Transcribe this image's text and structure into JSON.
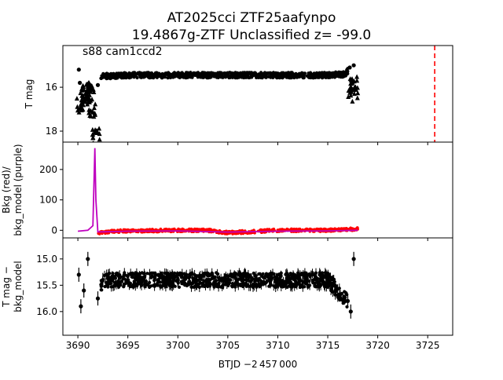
{
  "title_line1": "AT2025cci  ZTF25aafynpo",
  "title_line2": "19.4867g-ZTF Unclassified z= -99.0",
  "annotation": "s88 cam1ccd2",
  "xlabel": "BTJD −2 457 000",
  "colors": {
    "points": "#000000",
    "bkg": "#ff0000",
    "model": "#bf00bf",
    "vline": "#ff0000"
  },
  "chart_data": [
    {
      "type": "scatter",
      "panel": "top",
      "ylabel": "T mag",
      "xlim": [
        3688.5,
        3727.5
      ],
      "ylim": [
        18.5,
        14.1
      ],
      "yticks": [
        16,
        18
      ],
      "vline_x": 3725.7,
      "series": [
        {
          "marker": "circle",
          "x": [
            3690.1,
            3690.2,
            3692.0,
            3692.5,
            3695,
            3700,
            3705,
            3710,
            3715,
            3716.8,
            3717.2,
            3717.6
          ],
          "y": [
            15.2,
            15.8,
            15.9,
            15.5,
            15.45,
            15.45,
            15.45,
            15.45,
            15.45,
            15.4,
            15.1,
            15.0
          ]
        },
        {
          "marker": "triangle",
          "x": [
            3690.3,
            3690.6,
            3690.9,
            3691.2,
            3691.5,
            3691.8,
            3717.3,
            3717.6,
            3717.8
          ],
          "y": [
            16.7,
            16.5,
            16.3,
            16.1,
            17.0,
            18.3,
            16.0,
            15.8,
            16.2
          ]
        }
      ]
    },
    {
      "type": "line",
      "panel": "middle",
      "ylabel": "Bkg (red)/\nbkg_model (purple)",
      "xlim": [
        3688.5,
        3727.5
      ],
      "ylim": [
        -25,
        290
      ],
      "yticks": [
        0,
        100,
        200
      ],
      "bkg": {
        "x": [
          3690,
          3691,
          3692,
          3693,
          3695,
          3700,
          3703,
          3705,
          3707,
          3710,
          3715,
          3717,
          3718
        ],
        "y": [
          -3,
          2,
          -8,
          -5,
          -2,
          0,
          0,
          -8,
          -5,
          0,
          0,
          2,
          5
        ]
      },
      "model": {
        "x": [
          3690,
          3691,
          3691.5,
          3691.7,
          3691.8,
          3692.0,
          3692.5,
          3695,
          3700,
          3705,
          3710,
          3715,
          3718
        ],
        "y": [
          -3,
          0,
          15,
          270,
          100,
          -5,
          -5,
          -3,
          -2,
          -6,
          -3,
          -2,
          0
        ]
      }
    },
    {
      "type": "scatter",
      "panel": "bottom",
      "ylabel": "T mag −\nbkg_model",
      "xlim": [
        3688.5,
        3727.5
      ],
      "ylim": [
        16.45,
        14.6
      ],
      "yticks": [
        15.0,
        15.5,
        16.0
      ],
      "xticks": [
        3690,
        3695,
        3700,
        3705,
        3710,
        3715,
        3720,
        3725
      ],
      "x": [
        3690.1,
        3690.3,
        3690.6,
        3691.0,
        3692.0,
        3692.5,
        3695,
        3700,
        3705,
        3710,
        3715,
        3717.0,
        3717.3,
        3717.6
      ],
      "y": [
        15.3,
        15.9,
        15.6,
        15.0,
        15.75,
        15.4,
        15.4,
        15.4,
        15.4,
        15.4,
        15.4,
        15.8,
        16.0,
        15.0
      ]
    }
  ]
}
